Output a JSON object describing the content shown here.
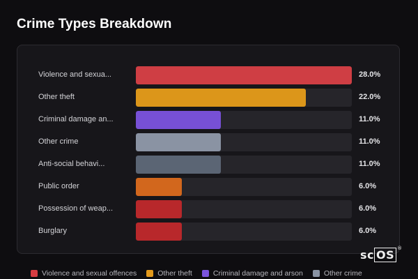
{
  "title": "Crime Types Breakdown",
  "logo": {
    "prefix": "sc",
    "boxed": "OS",
    "mark": "®"
  },
  "chart_data": {
    "type": "bar",
    "orientation": "horizontal",
    "title": "Crime Types Breakdown",
    "xlim": [
      0,
      28
    ],
    "categories": [
      "Violence and sexua...",
      "Other theft",
      "Criminal damage an...",
      "Other crime",
      "Anti-social behavi...",
      "Public order",
      "Possession of weap...",
      "Burglary"
    ],
    "values": [
      28.0,
      22.0,
      11.0,
      11.0,
      11.0,
      6.0,
      6.0,
      6.0
    ],
    "value_labels": [
      "28.0%",
      "22.0%",
      "11.0%",
      "11.0%",
      "11.0%",
      "6.0%",
      "6.0%",
      "6.0%"
    ],
    "colors": [
      "#cf3e44",
      "#dc961a",
      "#7750d6",
      "#8a93a3",
      "#5b6574",
      "#d2671d",
      "#b8282b",
      "#b8282b"
    ],
    "legend": {
      "placement": "bottom",
      "entries": [
        {
          "label": "Violence and sexual offences",
          "color": "#d63c42"
        },
        {
          "label": "Other theft",
          "color": "#e39a1c"
        },
        {
          "label": "Criminal damage and arson",
          "color": "#7a53dc"
        },
        {
          "label": "Other crime",
          "color": "#8a93a3"
        }
      ]
    }
  }
}
